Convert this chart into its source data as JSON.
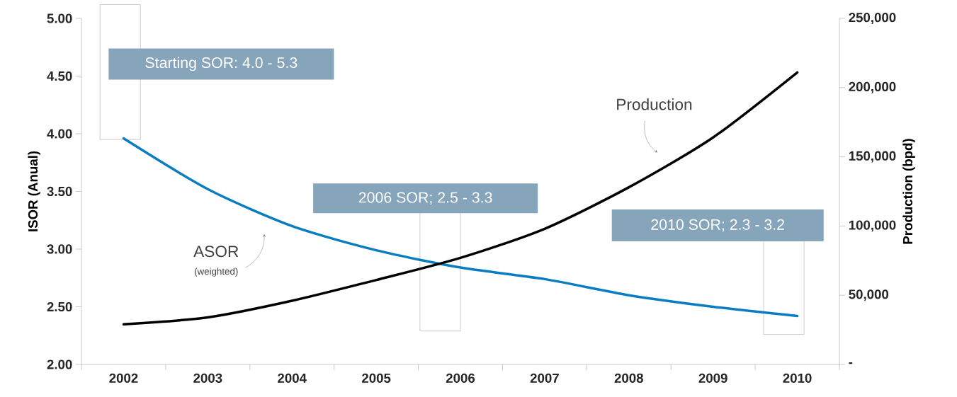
{
  "chart_data": {
    "type": "line",
    "categories": [
      "2002",
      "2003",
      "2004",
      "2005",
      "2006",
      "2007",
      "2008",
      "2009",
      "2010"
    ],
    "series": [
      {
        "name": "ASOR",
        "color": "#0a7cc1",
        "values": [
          3.96,
          3.52,
          3.2,
          2.99,
          2.84,
          2.74,
          2.6,
          2.5,
          2.42
        ]
      },
      {
        "name": "Production",
        "color": "#000000",
        "axis": "y2",
        "values": [
          29000,
          34000,
          46000,
          61000,
          77000,
          98000,
          128000,
          164000,
          211000
        ]
      }
    ],
    "ylabel": "ISOR (Anual)",
    "y2label": "Production (bpd)",
    "ylim": [
      2,
      5
    ],
    "yticks": [
      {
        "value": 2,
        "label": "2.00"
      },
      {
        "value": 2.5,
        "label": "2.50"
      },
      {
        "value": 3,
        "label": "3.00"
      },
      {
        "value": 3.5,
        "label": "3.50"
      },
      {
        "value": 4,
        "label": "4.00"
      },
      {
        "value": 4.5,
        "label": "4.50"
      },
      {
        "value": 5,
        "label": "5.00"
      }
    ],
    "y2lim": [
      0,
      250000
    ],
    "y2ticks": [
      {
        "value": 0,
        "label": "-"
      },
      {
        "value": 50000,
        "label": "50,000"
      },
      {
        "value": 100000,
        "label": "100,000"
      },
      {
        "value": 150000,
        "label": "150,000"
      },
      {
        "value": 200000,
        "label": "200,000"
      },
      {
        "value": 250000,
        "label": "250,000"
      }
    ],
    "annotations": [
      "Starting SOR: 4.0 - 5.3",
      "2006 SOR; 2.5 - 3.3",
      "2010 SOR; 2.3 - 3.2",
      "(weighted)"
    ]
  }
}
